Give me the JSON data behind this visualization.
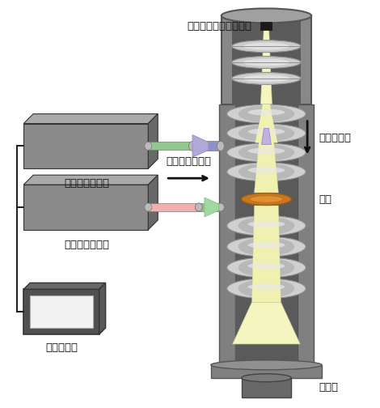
{
  "bg_color": "#ffffff",
  "labels": {
    "gun": "フォトカソード電子銃",
    "laser_pulse": "レーザーパルス",
    "nano_laser1": "ナノ秒レーザー",
    "nano_laser2": "ナノ秒レーザー",
    "delay_gen": "遅延発生器",
    "electron_pulse": "電子パルス",
    "sample": "試料",
    "camera": "カメラ"
  },
  "figsize": [
    4.7,
    5.04
  ],
  "dpi": 100
}
